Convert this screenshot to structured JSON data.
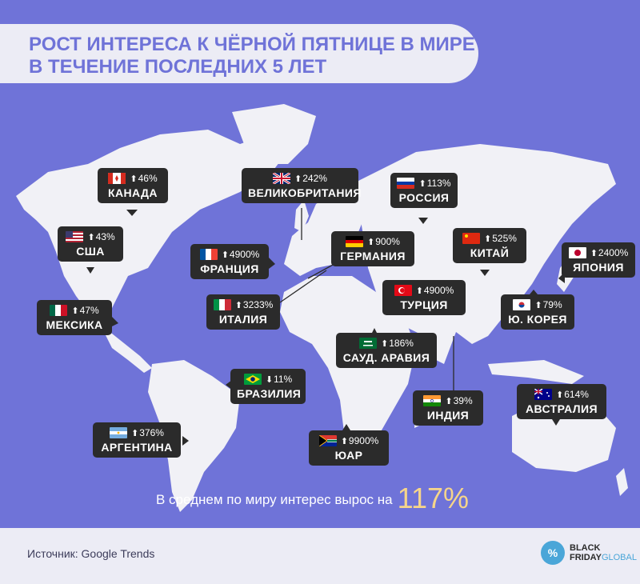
{
  "title": {
    "line1": "РОСТ ИНТЕРЕСА К ЧЁРНОЙ ПЯТНИЦЕ В МИРЕ",
    "line2": "В ТЕЧЕНИЕ ПОСЛЕДНИХ 5 ЛЕТ"
  },
  "colors": {
    "background": "#6f73d8",
    "land": "#f1f1f6",
    "callout": "#2b2b2b",
    "accent": "#f6d58a"
  },
  "countries": {
    "canada": {
      "name": "КАНАДА",
      "value": "46%",
      "arrow": "up",
      "flag": "canada-flag"
    },
    "usa": {
      "name": "США",
      "value": "43%",
      "arrow": "up",
      "flag": "usa-flag"
    },
    "mexico": {
      "name": "МЕКСИКА",
      "value": "47%",
      "arrow": "up",
      "flag": "mexico-flag"
    },
    "uk": {
      "name": "ВЕЛИКОБРИТАНИЯ",
      "value": "242%",
      "arrow": "up",
      "flag": "uk-flag"
    },
    "france": {
      "name": "ФРАНЦИЯ",
      "value": "4900%",
      "arrow": "up",
      "flag": "france-flag"
    },
    "germany": {
      "name": "ГЕРМАНИЯ",
      "value": "900%",
      "arrow": "up",
      "flag": "germany-flag"
    },
    "italy": {
      "name": "ИТАЛИЯ",
      "value": "3233%",
      "arrow": "up",
      "flag": "italy-flag"
    },
    "russia": {
      "name": "РОССИЯ",
      "value": "113%",
      "arrow": "up",
      "flag": "russia-flag"
    },
    "turkey": {
      "name": "ТУРЦИЯ",
      "value": "4900%",
      "arrow": "up",
      "flag": "turkey-flag"
    },
    "saudi": {
      "name": "САУД. АРАВИЯ",
      "value": "186%",
      "arrow": "up",
      "flag": "saudi-flag"
    },
    "china": {
      "name": "КИТАЙ",
      "value": "525%",
      "arrow": "up",
      "flag": "china-flag"
    },
    "japan": {
      "name": "ЯПОНИЯ",
      "value": "2400%",
      "arrow": "up",
      "flag": "japan-flag"
    },
    "korea": {
      "name": "Ю. КОРЕЯ",
      "value": "79%",
      "arrow": "up",
      "flag": "korea-flag"
    },
    "india": {
      "name": "ИНДИЯ",
      "value": "39%",
      "arrow": "up",
      "flag": "india-flag"
    },
    "brazil": {
      "name": "БРАЗИЛИЯ",
      "value": "11%",
      "arrow": "down",
      "flag": "brazil-flag"
    },
    "argentina": {
      "name": "АРГЕНТИНА",
      "value": "376%",
      "arrow": "up",
      "flag": "argentina-flag"
    },
    "sa": {
      "name": "ЮАР",
      "value": "9900%",
      "arrow": "up",
      "flag": "south-africa-flag"
    },
    "australia": {
      "name": "АВСТРАЛИЯ",
      "value": "614%",
      "arrow": "up",
      "flag": "australia-flag"
    }
  },
  "arrows": {
    "up": "⬆",
    "down": "⬇"
  },
  "summary": {
    "text": "В среднем по миру интерес вырос на",
    "value": "117%"
  },
  "footer": {
    "source": "Источник: Google Trends",
    "logo_mark": "%",
    "logo_line1": "BLACK",
    "logo_line2a": "FRIDAY",
    "logo_line2b": "GLOBAL"
  }
}
